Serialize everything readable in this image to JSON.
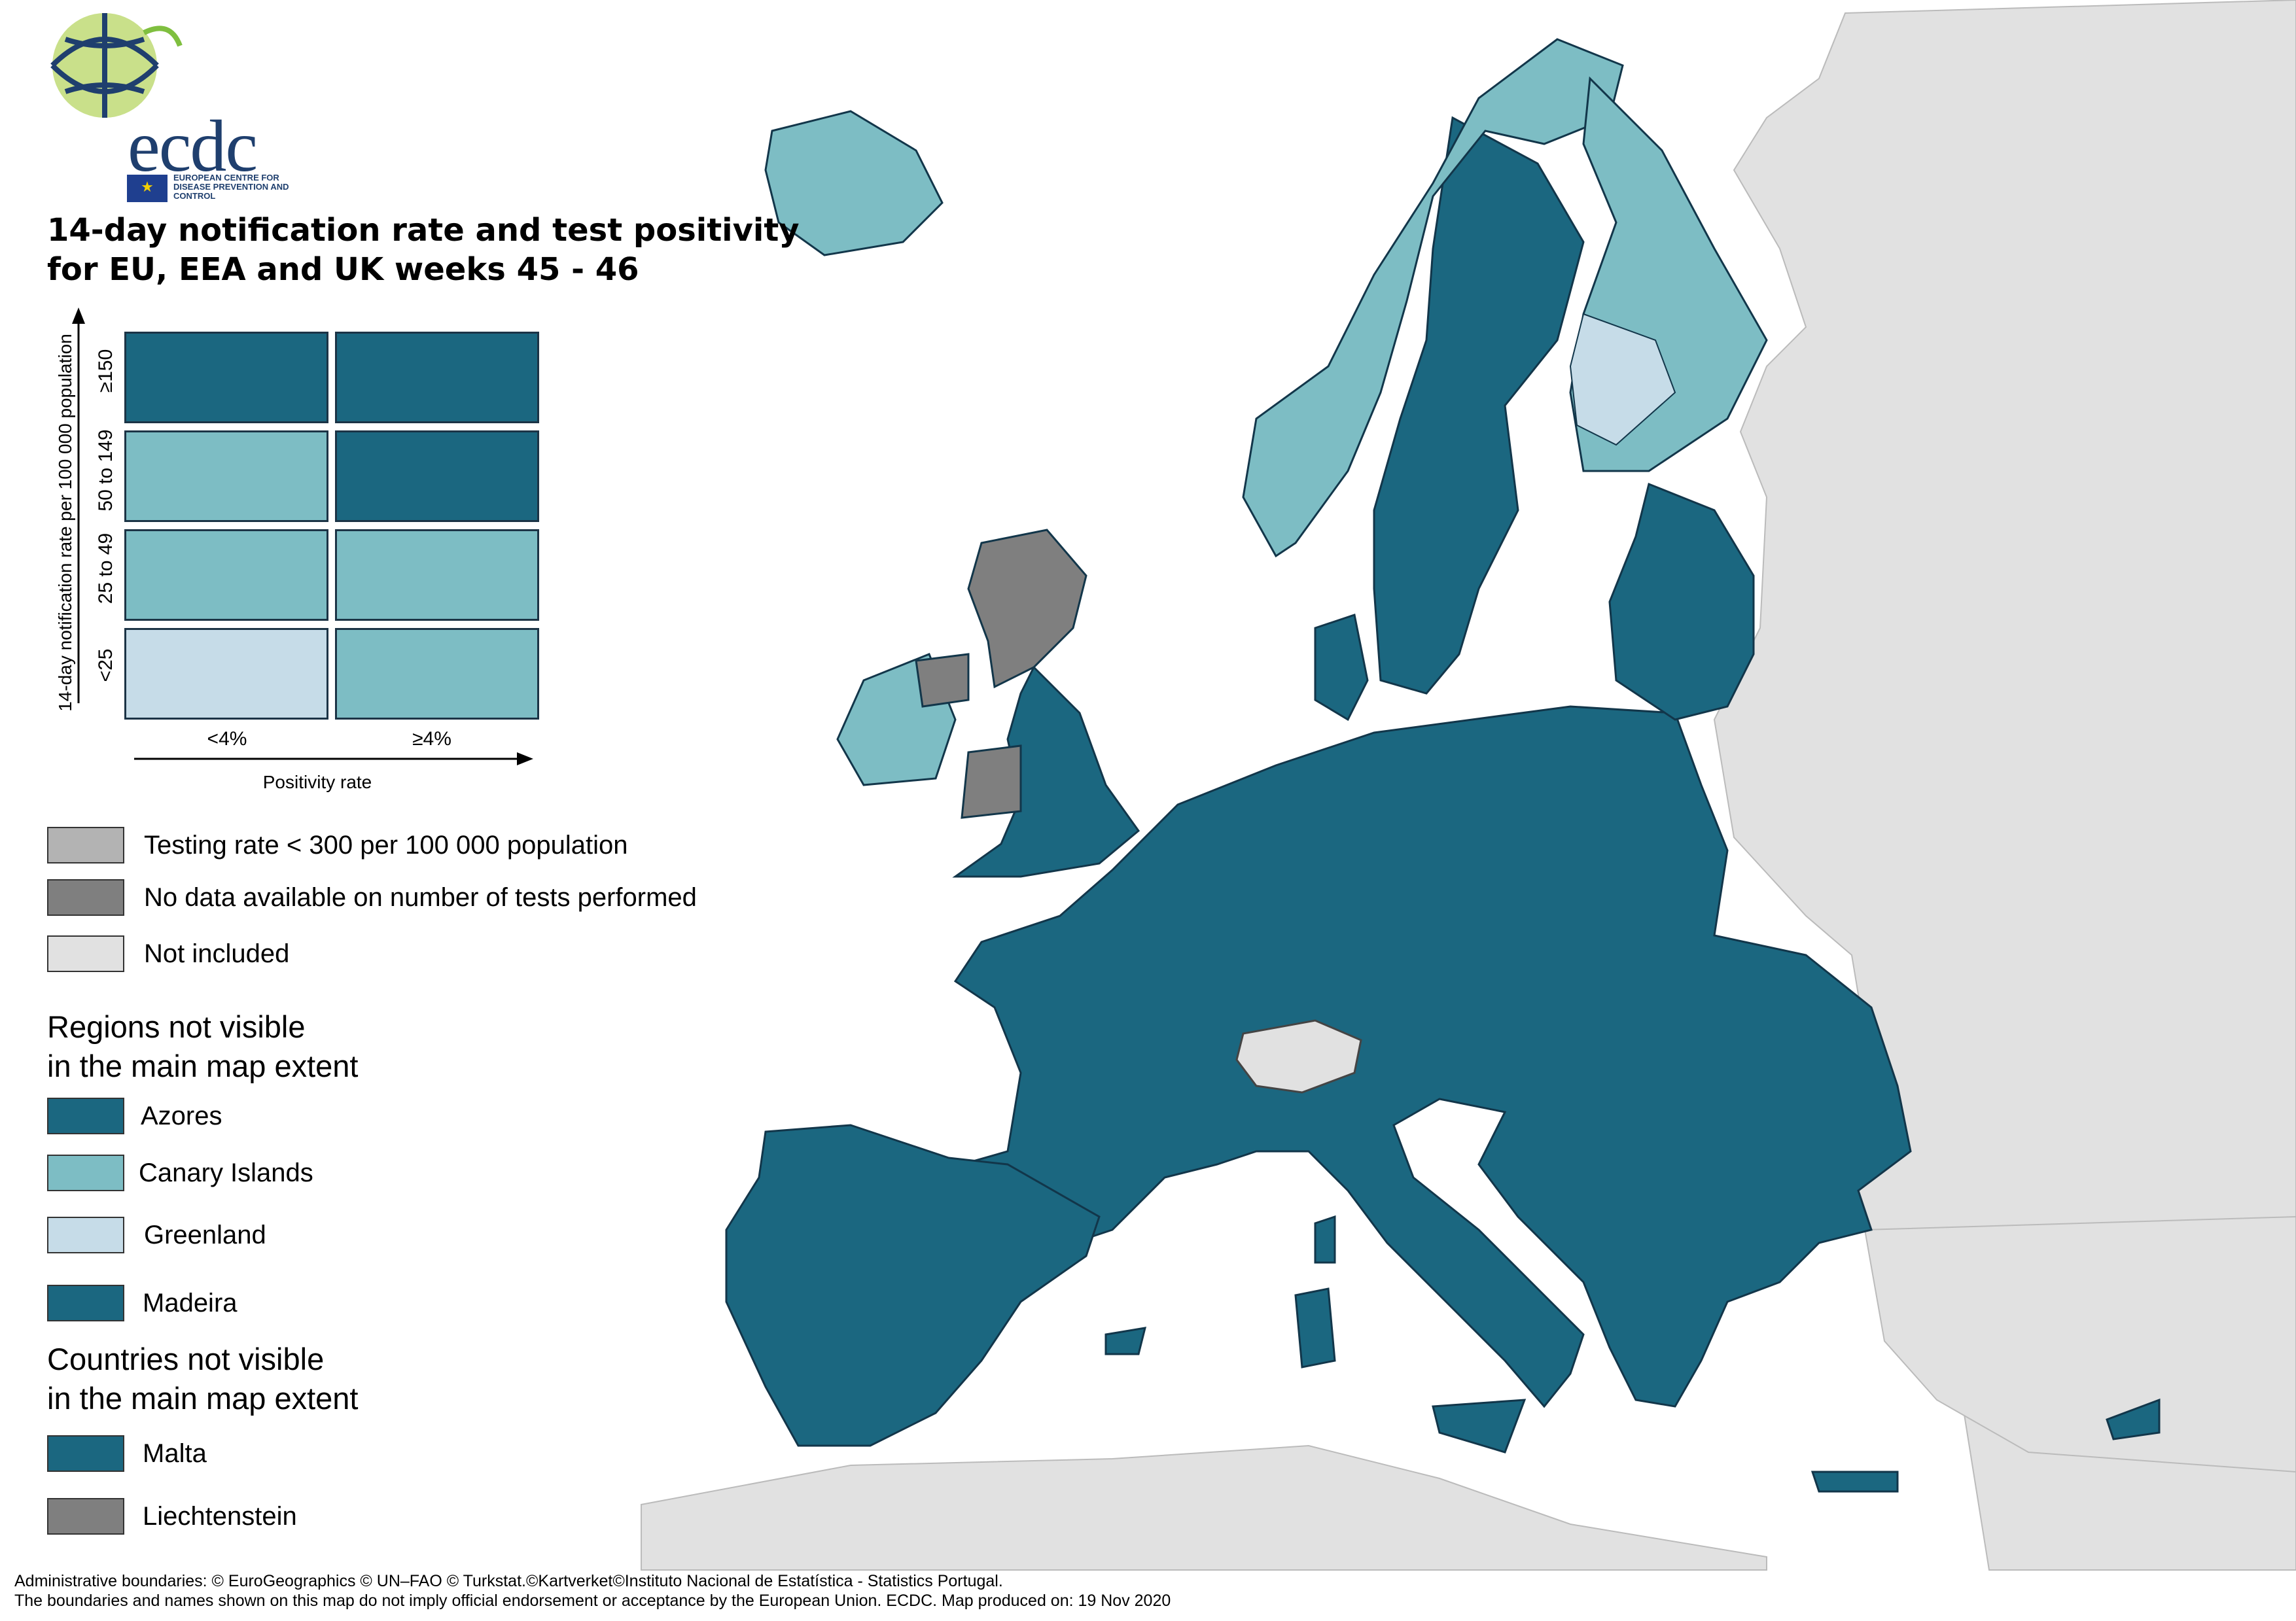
{
  "logo": {
    "wordmark": "ecdc",
    "organisation": "EUROPEAN CENTRE FOR DISEASE PREVENTION AND CONTROL"
  },
  "title": {
    "line1": "14-day notification rate and test positivity",
    "line2": "for EU, EEA and UK weeks 45 - 46"
  },
  "colors": {
    "dark_teal": "#1b6780",
    "light_teal": "#7dbdc4",
    "pale_blue": "#c6dce8",
    "testing_low": "#b3b3b3",
    "no_data": "#7f7f7f",
    "not_included": "#e1e1e1",
    "sea": "#ffffff"
  },
  "matrix": {
    "y_axis_title": "14-day notification rate per 100 000 population",
    "x_axis_title": "Positivity rate",
    "rows": [
      "≥150",
      "50 to 149",
      "25 to 49",
      "<25"
    ],
    "cols": [
      "<4%",
      "≥4%"
    ],
    "cells": [
      [
        "dark_teal",
        "dark_teal"
      ],
      [
        "light_teal",
        "dark_teal"
      ],
      [
        "light_teal",
        "light_teal"
      ],
      [
        "pale_blue",
        "light_teal"
      ]
    ]
  },
  "status_legend": [
    {
      "label": "Testing rate < 300 per 100 000 population",
      "color": "testing_low"
    },
    {
      "label": "No data available on number of tests performed",
      "color": "no_data"
    },
    {
      "label": "Not included",
      "color": "not_included"
    }
  ],
  "regions_heading": {
    "line1": "Regions not visible",
    "line2": "in the main map extent"
  },
  "regions": [
    {
      "label": "Azores",
      "color": "dark_teal"
    },
    {
      "label": "Canary Islands",
      "color": "light_teal"
    },
    {
      "label": "Greenland",
      "color": "pale_blue"
    },
    {
      "label": "Madeira",
      "color": "dark_teal"
    }
  ],
  "countries_heading": {
    "line1": "Countries not visible",
    "line2": "in the main map extent"
  },
  "countries": [
    {
      "label": "Malta",
      "color": "dark_teal"
    },
    {
      "label": "Liechtenstein",
      "color": "no_data"
    }
  ],
  "footer": {
    "line1": "Administrative boundaries: © EuroGeographics © UN–FAO © Turkstat.©Kartverket©Instituto Nacional de Estatística - Statistics Portugal.",
    "line2": "The boundaries and names shown on this map do not imply official endorsement or acceptance by the European Union. ECDC. Map produced on: 19 Nov 2020"
  }
}
